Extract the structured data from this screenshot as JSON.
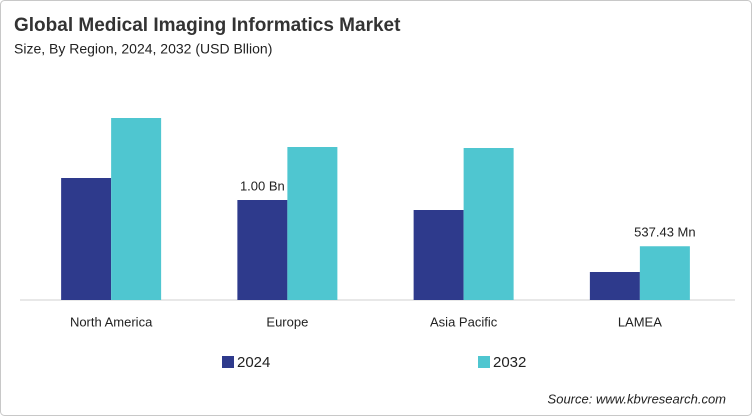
{
  "chart_data": {
    "type": "bar",
    "title": "Global Medical Imaging Informatics Market",
    "subtitle": "Size, By Region, 2024, 2032 (USD Bllion)",
    "source": "Source: www.kbvresearch.com",
    "categories": [
      "North America",
      "Europe",
      "Asia Pacific",
      "LAMEA"
    ],
    "series": [
      {
        "name": "2024",
        "color": "#2e3a8c",
        "values": [
          1.22,
          1.0,
          0.9,
          0.28
        ],
        "value_labels": [
          null,
          "1.00 Bn",
          null,
          null
        ]
      },
      {
        "name": "2032",
        "color": "#4fc6d0",
        "values": [
          1.82,
          1.53,
          1.52,
          0.53743
        ],
        "value_labels": [
          null,
          null,
          null,
          "537.43 Mn"
        ]
      }
    ],
    "ylim": [
      0,
      2
    ],
    "legend": "bottom"
  }
}
